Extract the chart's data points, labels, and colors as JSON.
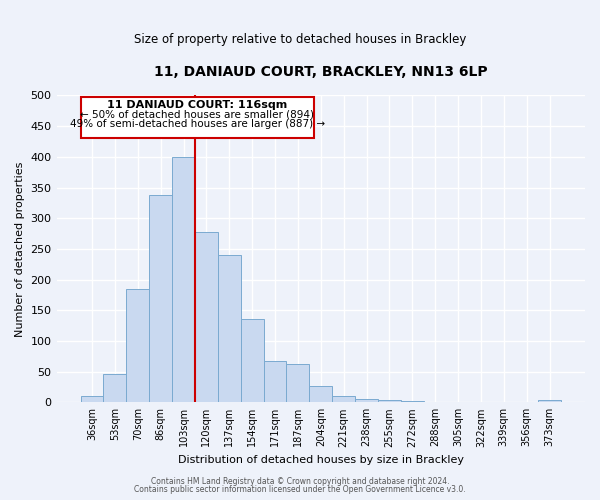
{
  "title": "11, DANIAUD COURT, BRACKLEY, NN13 6LP",
  "subtitle": "Size of property relative to detached houses in Brackley",
  "xlabel": "Distribution of detached houses by size in Brackley",
  "ylabel": "Number of detached properties",
  "bar_labels": [
    "36sqm",
    "53sqm",
    "70sqm",
    "86sqm",
    "103sqm",
    "120sqm",
    "137sqm",
    "154sqm",
    "171sqm",
    "187sqm",
    "204sqm",
    "221sqm",
    "238sqm",
    "255sqm",
    "272sqm",
    "288sqm",
    "305sqm",
    "322sqm",
    "339sqm",
    "356sqm",
    "373sqm"
  ],
  "bar_heights": [
    10,
    46,
    185,
    338,
    400,
    278,
    240,
    136,
    68,
    62,
    26,
    11,
    6,
    4,
    2,
    1,
    0.5,
    0.5,
    0.5,
    0.5,
    4
  ],
  "bar_color": "#c9d9f0",
  "bar_edge_color": "#7aaad0",
  "vline_x_index": 4,
  "vline_color": "#cc0000",
  "ylim": [
    0,
    500
  ],
  "yticks": [
    0,
    50,
    100,
    150,
    200,
    250,
    300,
    350,
    400,
    450,
    500
  ],
  "annotation_title": "11 DANIAUD COURT: 116sqm",
  "annotation_line1": "← 50% of detached houses are smaller (894)",
  "annotation_line2": "49% of semi-detached houses are larger (887) →",
  "annotation_box_color": "#ffffff",
  "annotation_box_edge": "#cc0000",
  "footer_line1": "Contains HM Land Registry data © Crown copyright and database right 2024.",
  "footer_line2": "Contains public sector information licensed under the Open Government Licence v3.0.",
  "background_color": "#eef2fa",
  "grid_color": "#ffffff"
}
